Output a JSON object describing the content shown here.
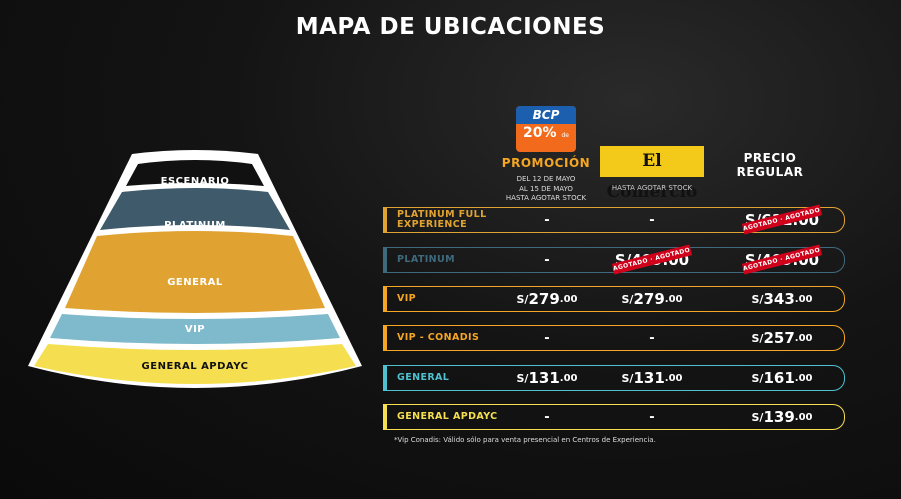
{
  "page": {
    "title": "MAPA DE UBICACIONES"
  },
  "map": {
    "sections": [
      {
        "label": "ESCENARIO",
        "color": "#111111"
      },
      {
        "label": "PLATINUM",
        "color": "#3f5a6a"
      },
      {
        "label": "GENERAL",
        "color": "#e0a332"
      },
      {
        "label": "VIP",
        "color": "#7fb9cc"
      },
      {
        "label": "GENERAL APDAYC",
        "color": "#f5df50"
      }
    ]
  },
  "columns": {
    "bcp": {
      "logo_text": "BCP",
      "discount": "20%",
      "discount_suffix": "de dscto",
      "title": "PROMOCIÓN",
      "dates_line1": "DEL 12 DE MAYO",
      "dates_line2": "AL 15 DE MAYO",
      "dates_line3": "HASTA AGOTAR STOCK"
    },
    "comercio": {
      "logo_text": "El Comercio",
      "note": "HASTA AGOTAR STOCK"
    },
    "regular": {
      "line1": "PRECIO",
      "line2": "REGULAR"
    }
  },
  "currency": "S/",
  "soldout_label": "AGOTADO · AGOTADO · AGOTADO",
  "rows": [
    {
      "zone": "PLATINUM FULL EXPERIENCE",
      "color": "#e0a332",
      "bcp": "-",
      "comercio": "-",
      "regular": "S/611.00",
      "regular_soldout": true
    },
    {
      "zone": "PLATINUM",
      "color": "#3f6a7e",
      "bcp": "-",
      "comercio": "S/409.00",
      "comercio_soldout": true,
      "regular": "S/409.00",
      "regular_soldout": true
    },
    {
      "zone": "VIP",
      "color": "#f5a623",
      "bcp": {
        "int": "279",
        "dec": ".00"
      },
      "comercio": {
        "int": "279",
        "dec": ".00"
      },
      "regular": {
        "int": "343",
        "dec": ".00"
      }
    },
    {
      "zone": "VIP - CONADIS",
      "color": "#f5a623",
      "bcp": "-",
      "comercio": "-",
      "regular": {
        "int": "257",
        "dec": ".00"
      }
    },
    {
      "zone": "GENERAL",
      "color": "#4ec0d0",
      "bcp": {
        "int": "131",
        "dec": ".00"
      },
      "comercio": {
        "int": "131",
        "dec": ".00"
      },
      "regular": {
        "int": "161",
        "dec": ".00"
      }
    },
    {
      "zone": "GENERAL APDAYC",
      "color": "#f5df50",
      "bcp": "-",
      "comercio": "-",
      "regular": {
        "int": "139",
        "dec": ".00"
      }
    }
  ],
  "footnote": "*Vip Conadis: Válido sólo para venta presencial en Centros de Experiencia."
}
